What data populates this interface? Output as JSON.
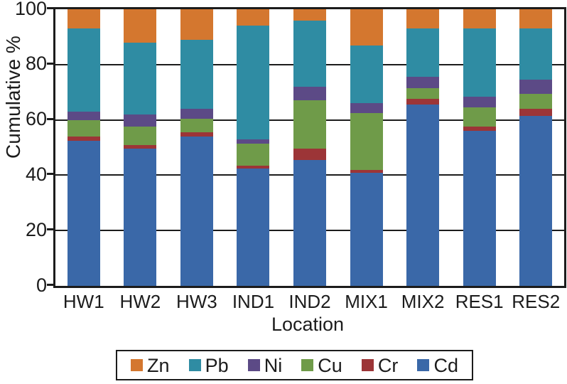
{
  "chart_data": {
    "type": "bar",
    "stacked": true,
    "title": "",
    "xlabel": "Location",
    "ylabel": "Cumulative %",
    "ylim": [
      0,
      100
    ],
    "yticks": [
      0,
      20,
      40,
      60,
      80,
      100
    ],
    "grid": true,
    "categories": [
      "HW1",
      "HW2",
      "HW3",
      "IND1",
      "IND2",
      "MIX1",
      "MIX2",
      "RES1",
      "RES2"
    ],
    "series": [
      {
        "name": "Cd",
        "color": "#3A68A8",
        "values": [
          52.5,
          49.5,
          54.0,
          42.5,
          45.5,
          41.0,
          65.5,
          56.0,
          61.5
        ]
      },
      {
        "name": "Cr",
        "color": "#9C3537",
        "values": [
          1.5,
          1.5,
          1.5,
          1.0,
          4.0,
          1.0,
          2.0,
          1.5,
          2.5
        ]
      },
      {
        "name": "Cu",
        "color": "#6F9B49",
        "values": [
          6.0,
          6.5,
          5.0,
          8.0,
          17.5,
          20.5,
          4.0,
          7.0,
          5.5
        ]
      },
      {
        "name": "Ni",
        "color": "#5C4A86",
        "values": [
          3.0,
          4.5,
          3.5,
          1.5,
          5.0,
          3.5,
          4.0,
          4.0,
          5.0
        ]
      },
      {
        "name": "Pb",
        "color": "#2F8CA3",
        "values": [
          30.0,
          26.0,
          25.0,
          41.0,
          24.0,
          21.0,
          17.5,
          24.5,
          18.5
        ]
      },
      {
        "name": "Zn",
        "color": "#D4772F",
        "values": [
          7.0,
          12.0,
          11.0,
          6.0,
          4.0,
          13.0,
          7.0,
          7.0,
          7.0
        ]
      }
    ],
    "legend": {
      "position": "bottom",
      "order": [
        "Zn",
        "Pb",
        "Ni",
        "Cu",
        "Cr",
        "Cd"
      ]
    }
  }
}
